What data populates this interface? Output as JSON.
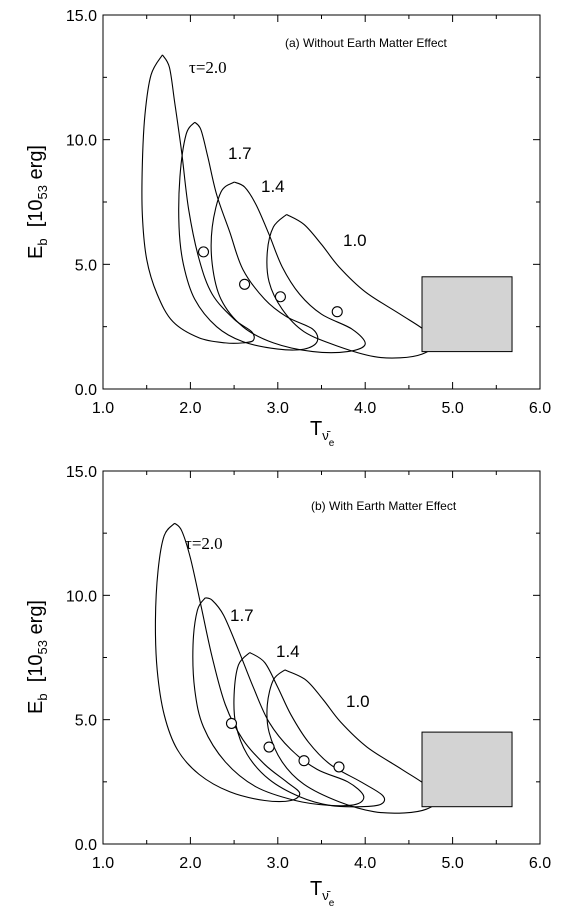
{
  "chart_data": [
    {
      "type": "line",
      "annotation": "(a) Without Earth Matter Effect",
      "xlabel": "T",
      "xlabel_sub": "ν̄",
      "xlabel_subsub": "e",
      "ylabel_main": "E",
      "ylabel_sub": "b",
      "ylabel_unit_open": "[10",
      "ylabel_unit_sub": "53",
      "ylabel_unit_close": "erg]",
      "xlim": [
        1.0,
        6.0
      ],
      "ylim": [
        0.0,
        15.0
      ],
      "xticks": [
        "1.0",
        "2.0",
        "3.0",
        "4.0",
        "5.0",
        "6.0"
      ],
      "yticks": [
        "0.0",
        "5.0",
        "10.0",
        "15.0"
      ],
      "series": [
        {
          "label": "τ=2.0",
          "best_fit": [
            2.15,
            5.5
          ],
          "contour": [
            [
              1.68,
              13.4
            ],
            [
              1.55,
              12.6
            ],
            [
              1.48,
              11.0
            ],
            [
              1.45,
              9.0
            ],
            [
              1.45,
              7.0
            ],
            [
              1.5,
              5.2
            ],
            [
              1.62,
              3.8
            ],
            [
              1.8,
              2.7
            ],
            [
              2.1,
              2.05
            ],
            [
              2.4,
              1.85
            ],
            [
              2.6,
              1.85
            ],
            [
              2.72,
              1.95
            ],
            [
              2.7,
              2.3
            ],
            [
              2.5,
              2.8
            ],
            [
              2.25,
              3.8
            ],
            [
              2.1,
              5.2
            ],
            [
              1.98,
              7.2
            ],
            [
              1.9,
              9.5
            ],
            [
              1.82,
              11.5
            ],
            [
              1.76,
              12.9
            ],
            [
              1.68,
              13.4
            ]
          ]
        },
        {
          "label": "1.7",
          "best_fit": [
            2.62,
            4.2
          ],
          "contour": [
            [
              2.05,
              10.7
            ],
            [
              1.95,
              10.2
            ],
            [
              1.88,
              8.5
            ],
            [
              1.87,
              6.5
            ],
            [
              1.92,
              5.0
            ],
            [
              2.05,
              3.6
            ],
            [
              2.3,
              2.5
            ],
            [
              2.6,
              1.9
            ],
            [
              3.0,
              1.6
            ],
            [
              3.3,
              1.6
            ],
            [
              3.45,
              1.9
            ],
            [
              3.4,
              2.4
            ],
            [
              3.1,
              2.9
            ],
            [
              2.85,
              3.6
            ],
            [
              2.6,
              4.8
            ],
            [
              2.45,
              6.3
            ],
            [
              2.3,
              7.8
            ],
            [
              2.2,
              9.3
            ],
            [
              2.12,
              10.4
            ],
            [
              2.05,
              10.7
            ]
          ]
        },
        {
          "label": "1.4",
          "best_fit": [
            3.03,
            3.7
          ],
          "contour": [
            [
              2.5,
              8.3
            ],
            [
              2.35,
              7.9
            ],
            [
              2.25,
              6.5
            ],
            [
              2.25,
              5.0
            ],
            [
              2.35,
              3.6
            ],
            [
              2.6,
              2.5
            ],
            [
              2.95,
              1.85
            ],
            [
              3.4,
              1.5
            ],
            [
              3.8,
              1.5
            ],
            [
              4.0,
              1.8
            ],
            [
              3.85,
              2.4
            ],
            [
              3.5,
              3.0
            ],
            [
              3.25,
              3.8
            ],
            [
              3.05,
              4.9
            ],
            [
              2.9,
              6.2
            ],
            [
              2.75,
              7.4
            ],
            [
              2.62,
              8.1
            ],
            [
              2.5,
              8.3
            ]
          ]
        },
        {
          "label": "1.0",
          "best_fit": [
            3.68,
            3.1
          ],
          "contour": [
            [
              3.1,
              7.0
            ],
            [
              2.95,
              6.5
            ],
            [
              2.88,
              5.5
            ],
            [
              2.9,
              4.3
            ],
            [
              3.05,
              3.2
            ],
            [
              3.3,
              2.3
            ],
            [
              3.7,
              1.7
            ],
            [
              4.1,
              1.3
            ],
            [
              4.4,
              1.25
            ],
            [
              4.65,
              1.4
            ],
            [
              4.78,
              1.75
            ],
            [
              4.7,
              2.3
            ],
            [
              4.4,
              3.0
            ],
            [
              4.0,
              3.9
            ],
            [
              3.7,
              4.9
            ],
            [
              3.5,
              5.8
            ],
            [
              3.3,
              6.6
            ],
            [
              3.1,
              7.0
            ]
          ]
        }
      ],
      "reference_box": {
        "x": [
          4.65,
          5.68
        ],
        "y": [
          1.5,
          4.5
        ],
        "fill": "#d3d3d3"
      }
    },
    {
      "type": "line",
      "annotation": "(b) With Earth Matter Effect",
      "xlabel": "T",
      "xlabel_sub": "ν̄",
      "xlabel_subsub": "e",
      "ylabel_main": "E",
      "ylabel_sub": "b",
      "ylabel_unit_open": "[10",
      "ylabel_unit_sub": "53",
      "ylabel_unit_close": "erg]",
      "xlim": [
        1.0,
        6.0
      ],
      "ylim": [
        0.0,
        15.0
      ],
      "xticks": [
        "1.0",
        "2.0",
        "3.0",
        "4.0",
        "5.0",
        "6.0"
      ],
      "yticks": [
        "0.0",
        "5.0",
        "10.0",
        "15.0"
      ],
      "series": [
        {
          "label": "τ=2.0",
          "best_fit": [
            2.47,
            4.85
          ],
          "contour": [
            [
              1.82,
              12.9
            ],
            [
              1.7,
              12.4
            ],
            [
              1.63,
              11.0
            ],
            [
              1.6,
              9.0
            ],
            [
              1.62,
              7.0
            ],
            [
              1.7,
              5.2
            ],
            [
              1.85,
              3.8
            ],
            [
              2.1,
              2.8
            ],
            [
              2.45,
              2.1
            ],
            [
              2.85,
              1.75
            ],
            [
              3.15,
              1.75
            ],
            [
              3.25,
              2.05
            ],
            [
              3.1,
              2.5
            ],
            [
              2.85,
              3.2
            ],
            [
              2.6,
              4.2
            ],
            [
              2.4,
              5.6
            ],
            [
              2.25,
              7.5
            ],
            [
              2.12,
              9.6
            ],
            [
              2.0,
              11.5
            ],
            [
              1.9,
              12.6
            ],
            [
              1.82,
              12.9
            ]
          ]
        },
        {
          "label": "1.7",
          "best_fit": [
            2.9,
            3.9
          ],
          "contour": [
            [
              2.17,
              9.9
            ],
            [
              2.08,
              9.4
            ],
            [
              2.03,
              8.0
            ],
            [
              2.05,
              6.2
            ],
            [
              2.15,
              4.7
            ],
            [
              2.4,
              3.3
            ],
            [
              2.75,
              2.3
            ],
            [
              3.2,
              1.75
            ],
            [
              3.6,
              1.55
            ],
            [
              3.9,
              1.6
            ],
            [
              3.98,
              1.95
            ],
            [
              3.8,
              2.5
            ],
            [
              3.45,
              3.0
            ],
            [
              3.15,
              3.8
            ],
            [
              2.9,
              4.9
            ],
            [
              2.72,
              6.3
            ],
            [
              2.55,
              7.8
            ],
            [
              2.38,
              9.2
            ],
            [
              2.25,
              9.8
            ],
            [
              2.17,
              9.9
            ]
          ]
        },
        {
          "label": "1.4",
          "best_fit": [
            3.3,
            3.35
          ],
          "contour": [
            [
              2.68,
              7.7
            ],
            [
              2.55,
              7.2
            ],
            [
              2.5,
              6.0
            ],
            [
              2.52,
              4.8
            ],
            [
              2.65,
              3.6
            ],
            [
              2.9,
              2.6
            ],
            [
              3.25,
              1.9
            ],
            [
              3.6,
              1.55
            ],
            [
              3.95,
              1.5
            ],
            [
              4.18,
              1.6
            ],
            [
              4.2,
              1.95
            ],
            [
              3.95,
              2.5
            ],
            [
              3.6,
              3.2
            ],
            [
              3.35,
              4.1
            ],
            [
              3.15,
              5.2
            ],
            [
              3.0,
              6.3
            ],
            [
              2.85,
              7.3
            ],
            [
              2.68,
              7.7
            ]
          ]
        },
        {
          "label": "1.0",
          "best_fit": [
            3.7,
            3.1
          ],
          "contour": [
            [
              3.08,
              7.0
            ],
            [
              2.95,
              6.6
            ],
            [
              2.88,
              5.6
            ],
            [
              2.9,
              4.5
            ],
            [
              3.05,
              3.3
            ],
            [
              3.3,
              2.4
            ],
            [
              3.7,
              1.7
            ],
            [
              4.1,
              1.3
            ],
            [
              4.45,
              1.25
            ],
            [
              4.7,
              1.4
            ],
            [
              4.82,
              1.75
            ],
            [
              4.72,
              2.3
            ],
            [
              4.42,
              3.0
            ],
            [
              4.02,
              3.9
            ],
            [
              3.72,
              4.9
            ],
            [
              3.52,
              5.8
            ],
            [
              3.32,
              6.6
            ],
            [
              3.08,
              7.0
            ]
          ]
        }
      ],
      "reference_box": {
        "x": [
          4.65,
          5.68
        ],
        "y": [
          1.5,
          4.5
        ],
        "fill": "#d3d3d3"
      }
    }
  ]
}
